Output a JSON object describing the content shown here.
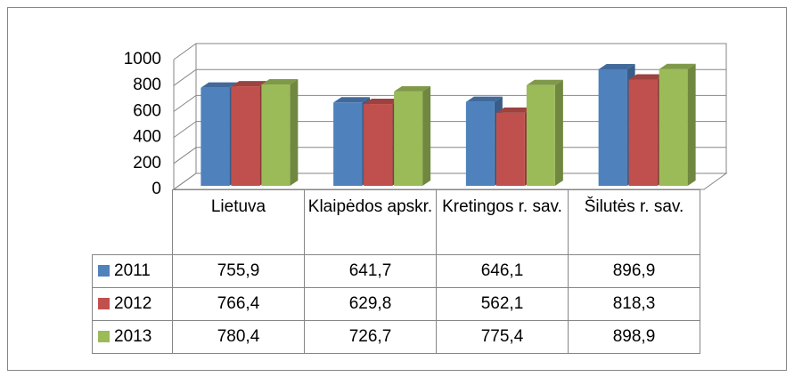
{
  "chart_data": {
    "type": "bar3d",
    "categories": [
      "Lietuva",
      "Klaipėdos apskr.",
      "Kretingos r. sav.",
      "Šilutės r. sav."
    ],
    "series": [
      {
        "name": "2011",
        "color": "#4f81bd",
        "values": [
          755.9,
          641.7,
          646.1,
          896.9
        ],
        "value_labels": [
          "755,9",
          "641,7",
          "646,1",
          "896,9"
        ]
      },
      {
        "name": "2012",
        "color": "#c0504d",
        "values": [
          766.4,
          629.8,
          562.1,
          818.3
        ],
        "value_labels": [
          "766,4",
          "629,8",
          "562,1",
          "818,3"
        ]
      },
      {
        "name": "2013",
        "color": "#9bbb59",
        "values": [
          780.4,
          726.7,
          775.4,
          898.9
        ],
        "value_labels": [
          "780,4",
          "726,7",
          "775,4",
          "898,9"
        ]
      }
    ],
    "ylim": [
      0,
      1000
    ],
    "yticks": [
      0,
      200,
      400,
      600,
      800,
      1000
    ],
    "grid": true,
    "data_table": true
  }
}
